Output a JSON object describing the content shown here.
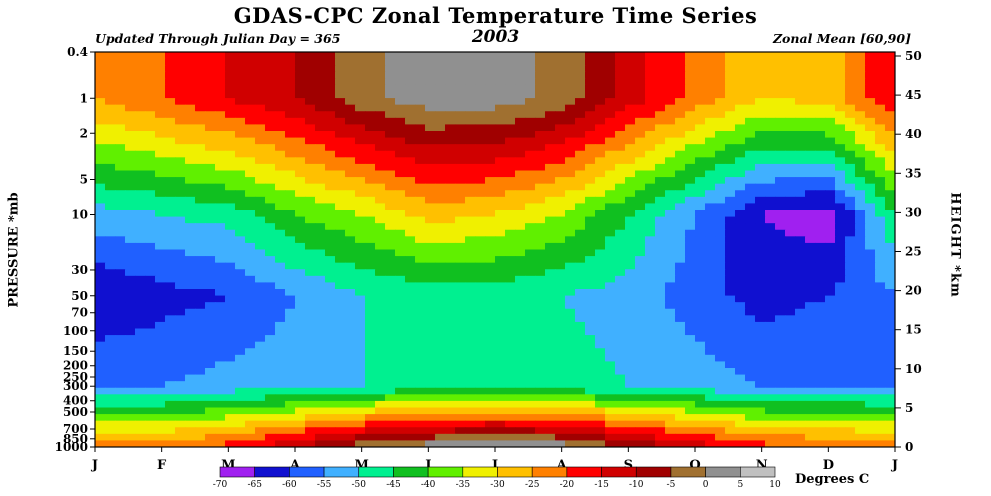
{
  "header": {
    "title": "GDAS-CPC Zonal Temperature Time Series",
    "year": "2003",
    "updated": "Updated Through Julian Day = 365",
    "region": "Zonal Mean [60,90]"
  },
  "colors": {
    "levels": [
      "#a020f0",
      "#1010d0",
      "#2060ff",
      "#40b0ff",
      "#00f090",
      "#10c020",
      "#60f000",
      "#f0f000",
      "#ffc000",
      "#ff8000",
      "#ff0000",
      "#d00000",
      "#a00000",
      "#a07030",
      "#909090",
      "#c0c0c0"
    ]
  },
  "chart_data": {
    "type": "heatmap",
    "title": "GDAS-CPC Zonal Temperature Time Series",
    "subtitle": "2003",
    "xlabel": "",
    "ylabel": "PRESSURE *mb",
    "y2label": "HEIGHT *km",
    "x_tick_labels": [
      "J",
      "F",
      "M",
      "A",
      "M",
      "J",
      "J",
      "A",
      "S",
      "O",
      "N",
      "D",
      "J"
    ],
    "y_tick_labels": [
      "0.4",
      "1",
      "2",
      "5",
      "10",
      "30",
      "50",
      "70",
      "100",
      "150",
      "200",
      "250",
      "300",
      "400",
      "500",
      "700",
      "850",
      "1000"
    ],
    "y_ticks_mb": [
      0.4,
      1,
      2,
      5,
      10,
      30,
      50,
      70,
      100,
      150,
      200,
      250,
      300,
      400,
      500,
      700,
      850,
      1000
    ],
    "y2_ticks_km": [
      0,
      5,
      10,
      15,
      20,
      25,
      30,
      35,
      40,
      45,
      50
    ],
    "y2_tick_labels": [
      "0",
      "5",
      "10",
      "15",
      "20",
      "25",
      "30",
      "35",
      "40",
      "45",
      "50"
    ],
    "color_scale": {
      "label": "Degrees C",
      "levels": [
        -70,
        -65,
        -60,
        -55,
        -50,
        -45,
        -40,
        -35,
        -30,
        -25,
        -20,
        -15,
        -10,
        -5,
        0,
        5,
        10
      ],
      "level_labels": [
        "-70",
        "-65",
        "-60",
        "-55",
        "-50",
        "-45",
        "-40",
        "-35",
        "-30",
        "-25",
        "-20",
        "-15",
        "-10",
        "-5",
        "0",
        "5",
        "10"
      ]
    },
    "approx_values_c": {
      "x": [
        "Jan",
        "Feb",
        "Mar",
        "Apr",
        "May",
        "Jun",
        "Jul",
        "Aug",
        "Sep",
        "Oct",
        "Nov",
        "Dec",
        "Jan"
      ],
      "rows": [
        {
          "mb": 1,
          "values": [
            -25,
            -20,
            -15,
            -10,
            -2,
            3,
            3,
            -2,
            -12,
            -22,
            -30,
            -28,
            -15
          ]
        },
        {
          "mb": 10,
          "values": [
            -52,
            -50,
            -48,
            -40,
            -35,
            -28,
            -30,
            -35,
            -45,
            -55,
            -65,
            -68,
            -45
          ]
        },
        {
          "mb": 50,
          "values": [
            -65,
            -62,
            -60,
            -55,
            -50,
            -48,
            -48,
            -50,
            -52,
            -58,
            -62,
            -60,
            -55
          ]
        },
        {
          "mb": 300,
          "values": [
            -55,
            -55,
            -53,
            -52,
            -50,
            -48,
            -47,
            -48,
            -50,
            -52,
            -55,
            -55,
            -55
          ]
        },
        {
          "mb": 1000,
          "values": [
            -22,
            -22,
            -18,
            -10,
            -2,
            3,
            5,
            3,
            -5,
            -12,
            -18,
            -20,
            -22
          ]
        }
      ]
    }
  }
}
